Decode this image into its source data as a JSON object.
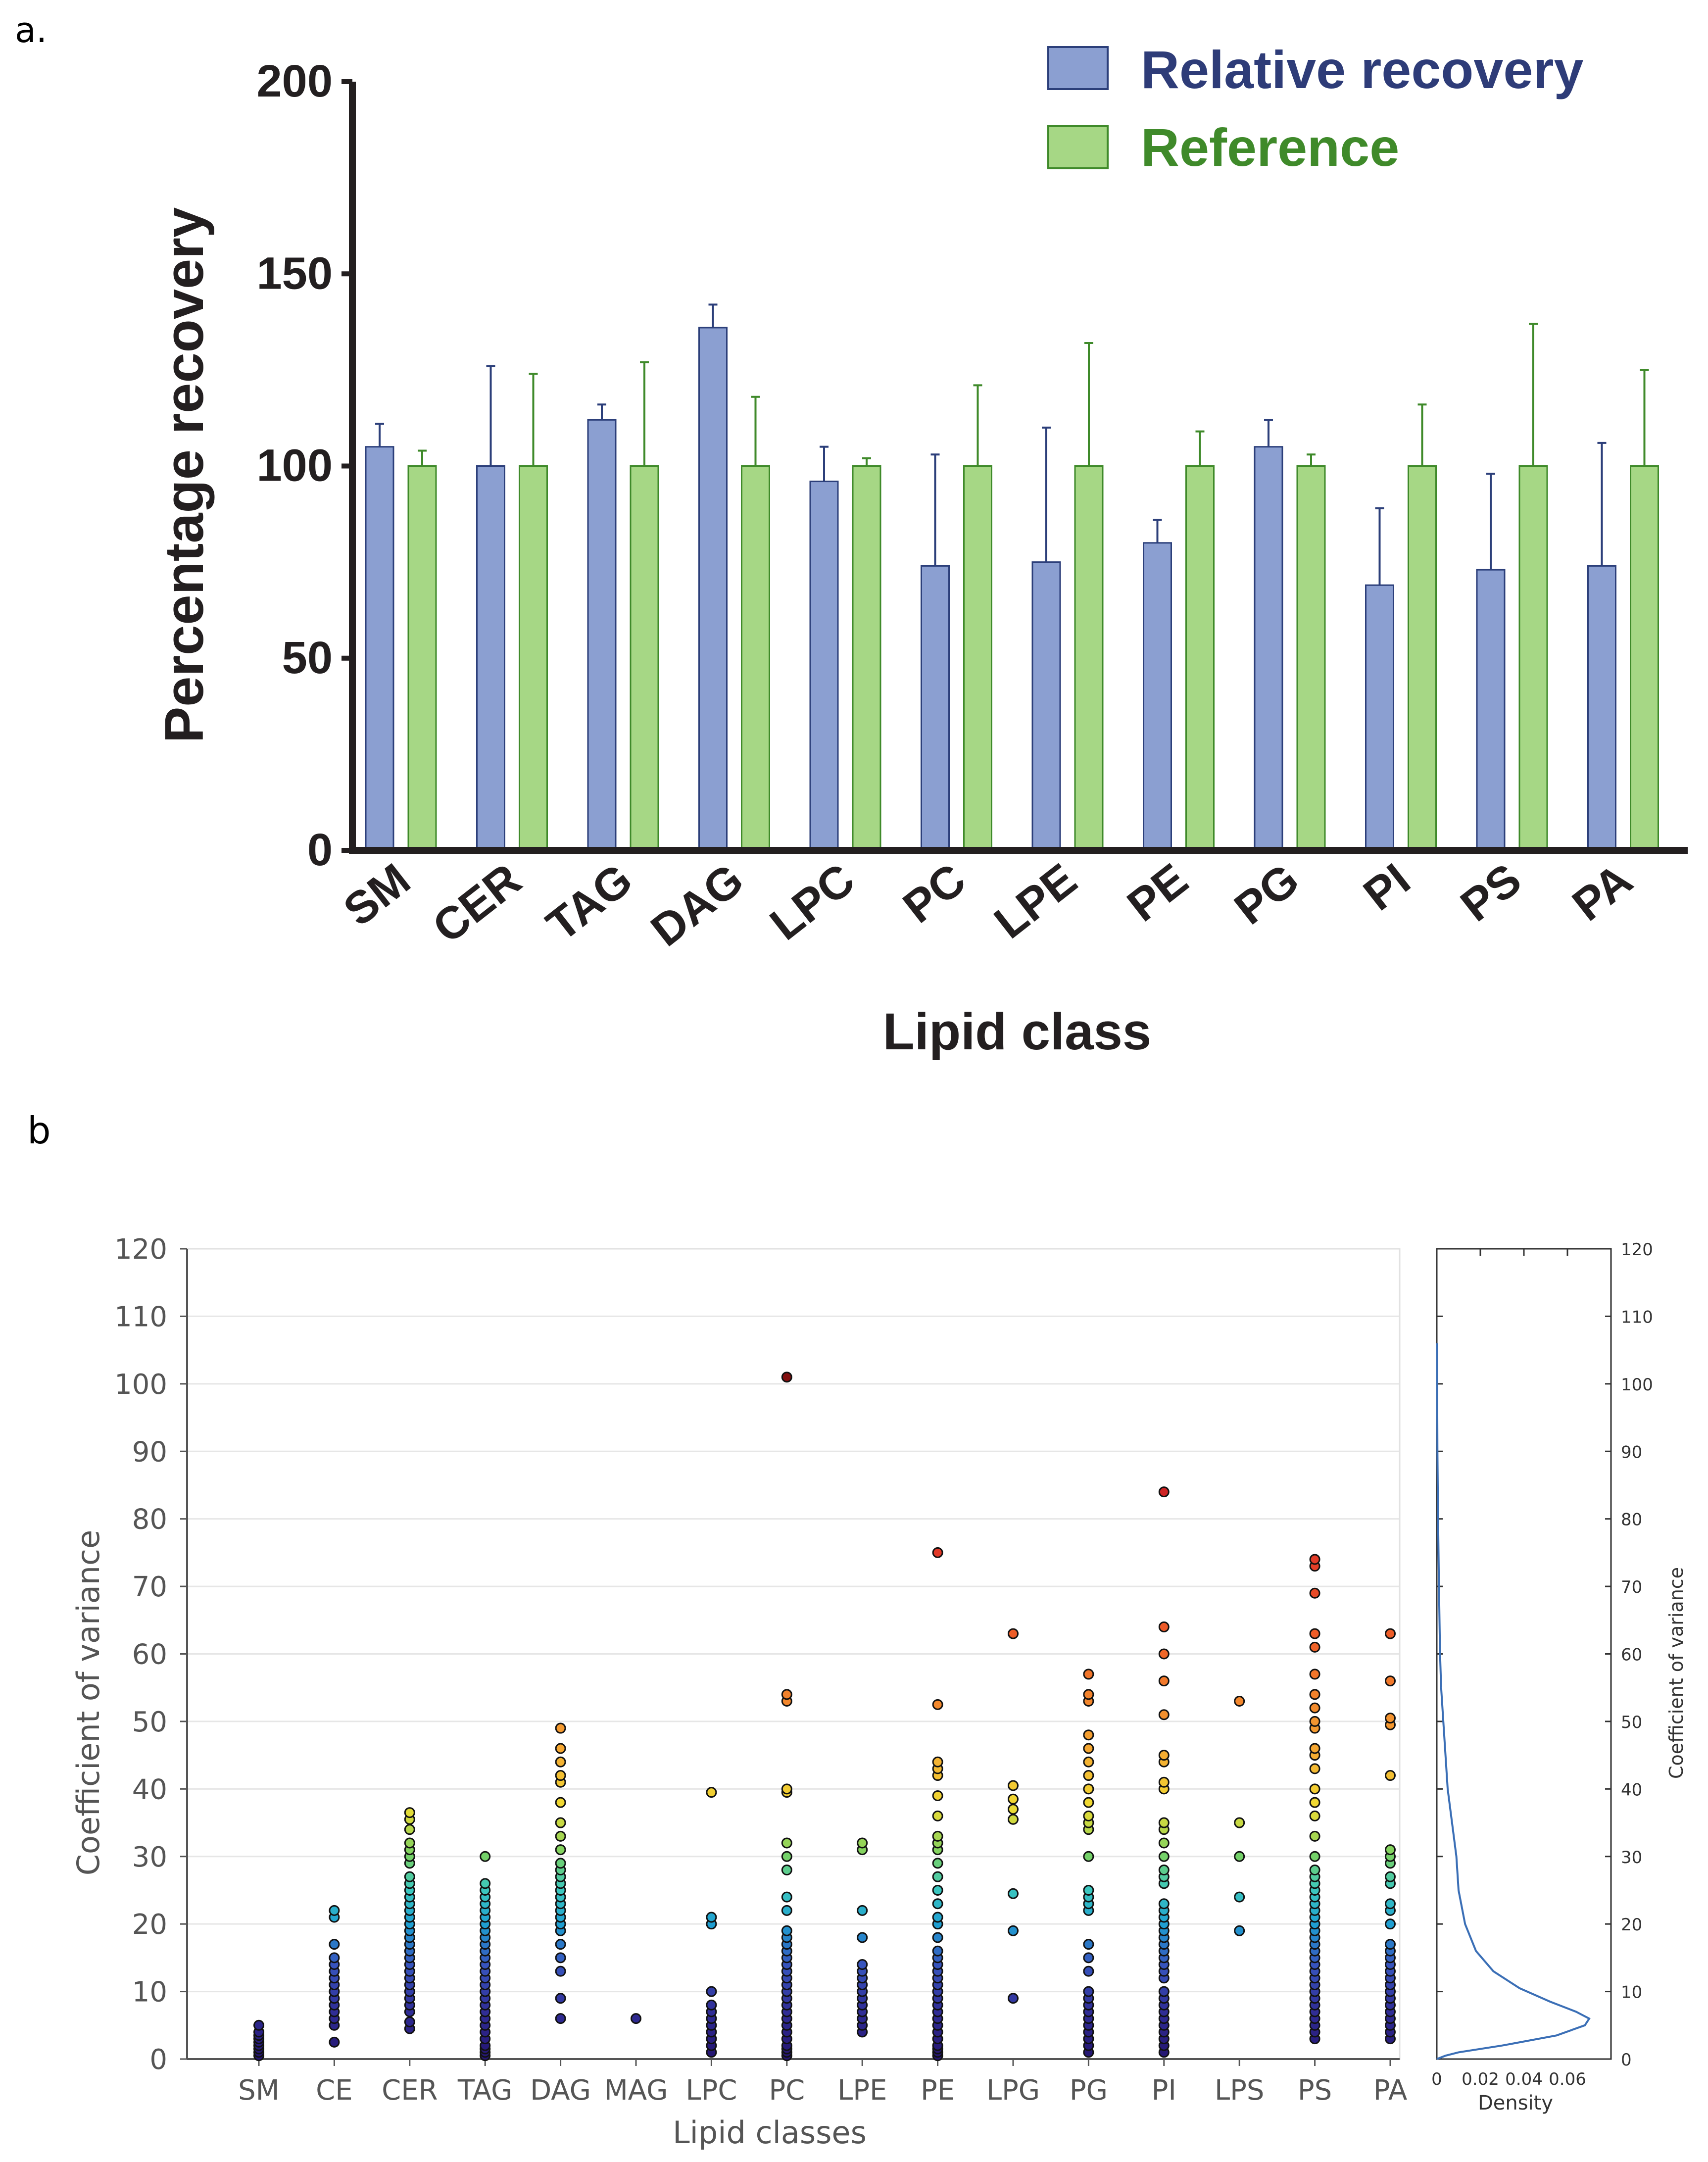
{
  "colors": {
    "recovery_fill": "#8b9fd1",
    "recovery_edge": "#2c3f7a",
    "reference_fill": "#a6d785",
    "reference_edge": "#3f8a2a",
    "legend_recovery_text": "#2e3c78",
    "legend_reference_text": "#3f8a2a"
  },
  "chart_data": [
    {
      "panel_label": "a.",
      "type": "bar",
      "title": "",
      "xlabel": "Lipid class",
      "ylabel": "Percentage recovery",
      "ylim": [
        0,
        200
      ],
      "yticks": [
        0,
        50,
        100,
        150,
        200
      ],
      "legend_position": "top-right",
      "categories": [
        "SM",
        "CER",
        "TAG",
        "DAG",
        "LPC",
        "PC",
        "LPE",
        "PE",
        "PG",
        "PI",
        "PS",
        "PA"
      ],
      "series": [
        {
          "name": "Relative recovery",
          "values": [
            105,
            100,
            112,
            136,
            96,
            74,
            75,
            80,
            105,
            69,
            73,
            74
          ],
          "errors": [
            6,
            26,
            4,
            6,
            9,
            29,
            35,
            6,
            7,
            20,
            25,
            32
          ]
        },
        {
          "name": "Reference",
          "values": [
            100,
            100,
            100,
            100,
            100,
            100,
            100,
            100,
            100,
            100,
            100,
            100
          ],
          "errors": [
            4,
            24,
            27,
            18,
            2,
            21,
            32,
            9,
            3,
            16,
            37,
            25
          ]
        }
      ]
    },
    {
      "panel_label": "b",
      "type": "scatter",
      "title": "",
      "xlabel": "Lipid classes",
      "ylabel": "Coefficient of variance",
      "ylim": [
        0,
        120
      ],
      "yticks": [
        0,
        10,
        20,
        30,
        40,
        50,
        60,
        70,
        80,
        90,
        100,
        110,
        120
      ],
      "grid": true,
      "color_scale": "value-mapped: dark blue (low) to red (high)",
      "categories": [
        "SM",
        "CE",
        "CER",
        "TAG",
        "DAG",
        "MAG",
        "LPC",
        "PC",
        "LPE",
        "PE",
        "LPG",
        "PG",
        "PI",
        "LPS",
        "PS",
        "PA"
      ],
      "points": {
        "SM": [
          0.5,
          1,
          1.5,
          2,
          2.5,
          3,
          3.5,
          4,
          5
        ],
        "CE": [
          2.5,
          5,
          6,
          7,
          8,
          9,
          10,
          11,
          12,
          13,
          14,
          15,
          17,
          21,
          22
        ],
        "CER": [
          4.5,
          5.5,
          7,
          8,
          9,
          10,
          11,
          12,
          13,
          14,
          15,
          16,
          17,
          18,
          19,
          20,
          21,
          22,
          23,
          24,
          25,
          26,
          27,
          29,
          30,
          31,
          32,
          34,
          35.5,
          36.5
        ],
        "TAG": [
          0.5,
          1,
          1.5,
          2,
          3,
          4,
          5,
          6,
          7,
          8,
          9,
          10,
          11,
          12,
          13,
          14,
          15,
          16,
          17,
          18,
          19,
          20,
          21,
          22,
          23,
          24,
          25,
          26,
          30
        ],
        "DAG": [
          6,
          9,
          13,
          15,
          17,
          19,
          20,
          21,
          22,
          23,
          24,
          25,
          26,
          27,
          28,
          29,
          31,
          33,
          35,
          38,
          41,
          42,
          44,
          46,
          49
        ],
        "MAG": [
          6
        ],
        "LPC": [
          1,
          2,
          3,
          4,
          5,
          6,
          7,
          8,
          10,
          20,
          21,
          39.5
        ],
        "PC": [
          0.5,
          1,
          1.5,
          2,
          3,
          4,
          5,
          6,
          7,
          8,
          9,
          10,
          11,
          12,
          13,
          14,
          15,
          16,
          17,
          18,
          19,
          22,
          24,
          28,
          30,
          32,
          39.5,
          40,
          53,
          54,
          101
        ],
        "LPE": [
          4,
          5,
          6,
          7,
          8,
          9,
          10,
          11,
          12,
          13,
          14,
          18,
          22,
          31,
          32
        ],
        "PE": [
          0.5,
          1,
          1.5,
          2,
          3,
          4,
          5,
          6,
          7,
          8,
          9,
          10,
          11,
          12,
          13,
          14,
          15,
          16,
          18,
          20,
          21,
          23,
          25,
          27,
          29,
          31,
          32,
          33,
          36,
          39,
          42,
          43,
          44,
          52.5,
          75
        ],
        "LPG": [
          9,
          19,
          24.5,
          35.5,
          37,
          38.5,
          40.5,
          63
        ],
        "PG": [
          1,
          2,
          3,
          4,
          5,
          6,
          7,
          8,
          9,
          10,
          13,
          15,
          17,
          22,
          23,
          24,
          25,
          30,
          34,
          35,
          36,
          38,
          40,
          42,
          44,
          46,
          48,
          53,
          54,
          57
        ],
        "PI": [
          1,
          2,
          3,
          4,
          5,
          6,
          7,
          8,
          9,
          10,
          12,
          13,
          14,
          15,
          16,
          17,
          18,
          19,
          20,
          21,
          22,
          23,
          26,
          27,
          28,
          30,
          32,
          34,
          35,
          40,
          41,
          44,
          45,
          51,
          56,
          60,
          64,
          84
        ],
        "LPS": [
          19,
          24,
          30,
          35,
          53
        ],
        "PS": [
          3,
          4,
          5,
          6,
          7,
          8,
          9,
          10,
          11,
          12,
          13,
          14,
          15,
          16,
          17,
          18,
          19,
          20,
          21,
          22,
          23,
          24,
          25,
          26,
          27,
          28,
          30,
          33,
          36,
          38,
          40,
          43,
          45,
          46,
          49,
          50,
          52,
          54,
          57,
          61,
          63,
          69,
          73,
          74
        ],
        "PA": [
          3,
          4,
          5,
          6,
          7,
          8,
          9,
          10,
          11,
          12,
          13,
          14,
          15,
          16,
          17,
          20,
          22,
          23,
          26,
          27,
          29,
          30,
          31,
          42,
          49.5,
          50.5,
          56,
          63
        ]
      }
    },
    {
      "type": "line",
      "title": "",
      "xlabel": "Density",
      "ylabel": "Coefficient of variance",
      "xlim": [
        0,
        0.08
      ],
      "xticks": [
        "0",
        "0.02",
        "0.04",
        "0.06"
      ],
      "ylim": [
        0,
        120
      ],
      "yticks": [
        0,
        10,
        20,
        30,
        40,
        50,
        60,
        70,
        80,
        90,
        100,
        110,
        120
      ],
      "x": [
        0.0,
        0.004,
        0.01,
        0.03,
        0.055,
        0.068,
        0.07,
        0.064,
        0.052,
        0.038,
        0.026,
        0.018,
        0.013,
        0.01,
        0.009,
        0.007,
        0.005,
        0.004,
        0.003,
        0.002,
        0.0015,
        0.001,
        0.0006,
        0.0003,
        0.0001
      ],
      "y": [
        0,
        0.5,
        1,
        2,
        3.5,
        5,
        6,
        7,
        8.5,
        10.5,
        13,
        16,
        20,
        25,
        30,
        35,
        40,
        45,
        50,
        55,
        60,
        70,
        80,
        90,
        106
      ]
    }
  ]
}
